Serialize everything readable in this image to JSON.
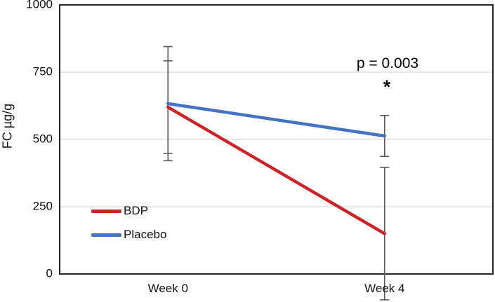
{
  "chart_data": {
    "type": "line",
    "title": "",
    "xlabel": "",
    "ylabel": "FC µg/g",
    "categories": [
      "Week 0",
      "Week 4"
    ],
    "series": [
      {
        "name": "BDP",
        "color": "#CC2529",
        "values": [
          620,
          150
        ],
        "errors": [
          172,
          246
        ]
      },
      {
        "name": "Placebo",
        "color": "#4472C4",
        "values": [
          633,
          513
        ],
        "errors": [
          212,
          76
        ]
      }
    ],
    "ylim": [
      0,
      1000
    ],
    "yticks": [
      0,
      250,
      500,
      750,
      1000
    ],
    "ytick_labels": [
      "0",
      "250",
      "500",
      "750",
      "1000"
    ],
    "grid": "horizontal",
    "gridline_color": "#d9d9d9",
    "plot_border_color": "#262626",
    "error_bar_color": "#595959",
    "legend_position": "inside-lower-left",
    "annotations": {
      "p_text": "p = 0.003",
      "star": "*"
    }
  }
}
